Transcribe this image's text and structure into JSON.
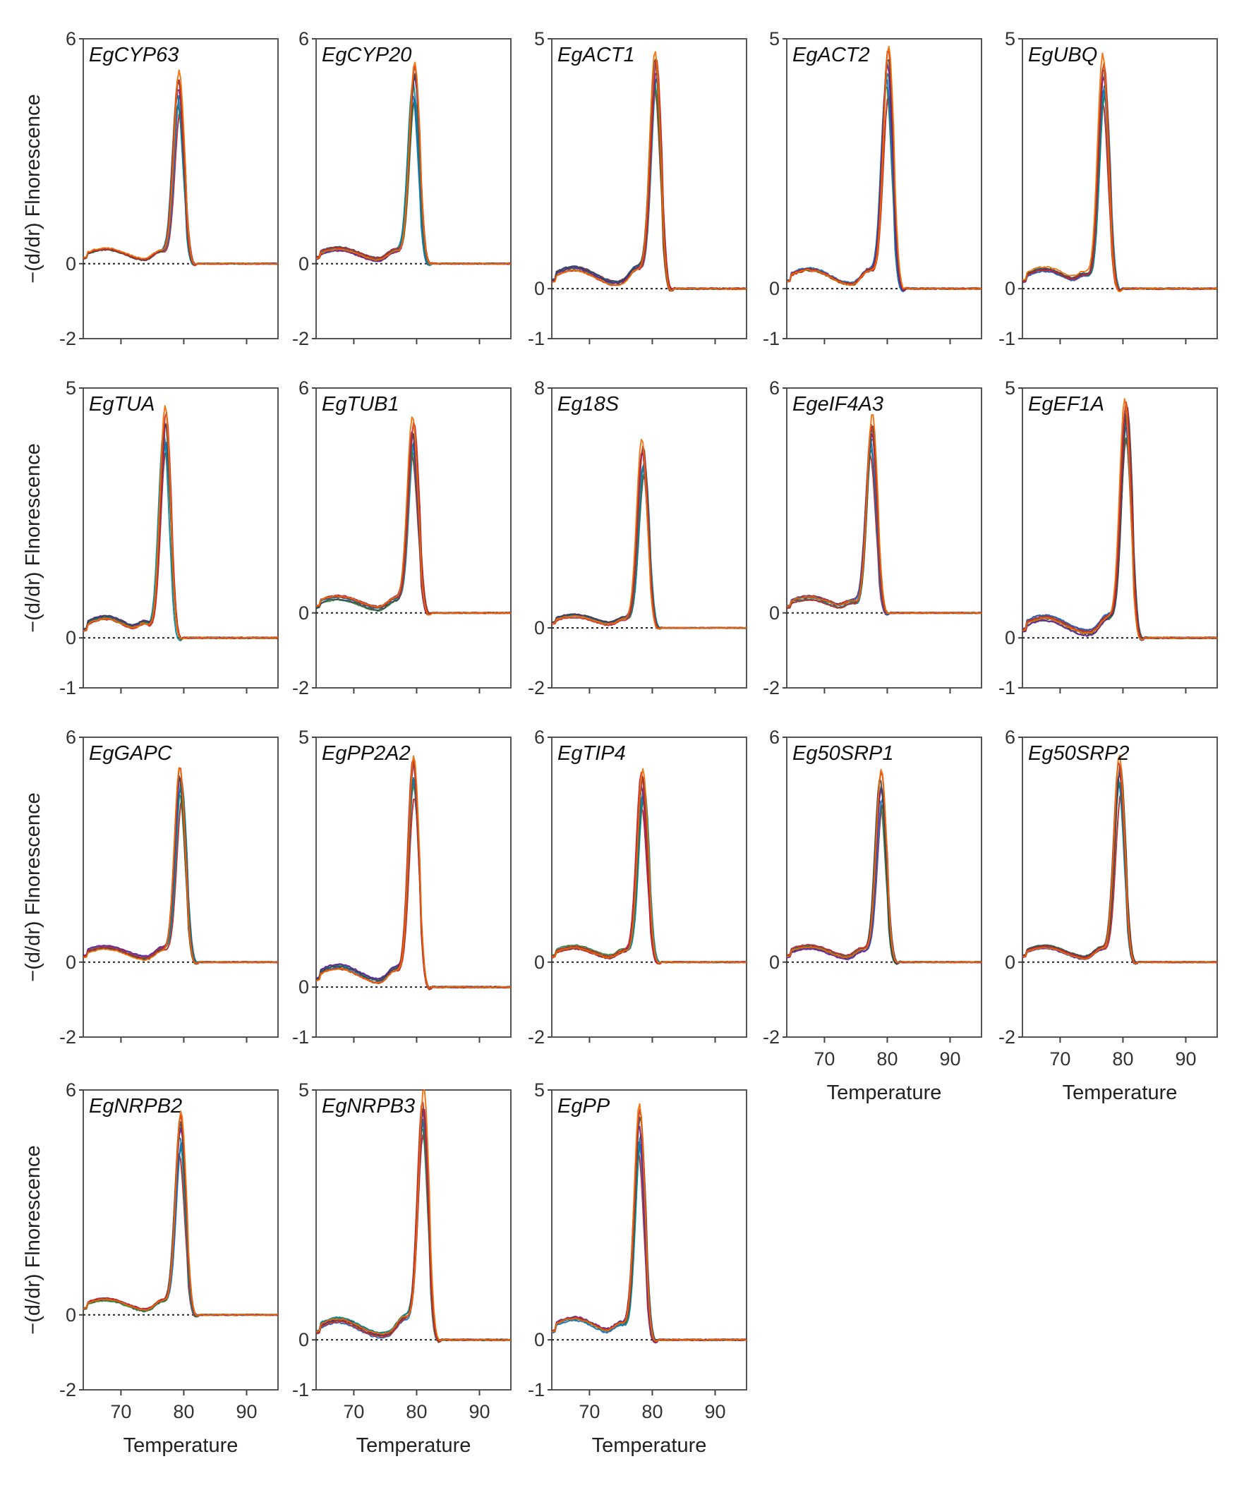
{
  "chart_data": {
    "type": "line",
    "title": "",
    "ylabel": "−(d/dr) Flnorescence",
    "xlabel": "Temperature",
    "xlim": [
      64,
      95
    ],
    "x_ticks": [
      70,
      80,
      90
    ],
    "series_colors": [
      "#b71c1c",
      "#2e7d32",
      "#1565c0",
      "#00838f",
      "#6a1b9a",
      "#37474f",
      "#c62828",
      "#ef6c00"
    ],
    "panels": [
      {
        "title": "EgCYP63",
        "ylim": [
          -2,
          6
        ],
        "peak_x": 79.2,
        "peak_y": 4.8,
        "x_labels": false,
        "ylabel": true
      },
      {
        "title": "EgCYP20",
        "ylim": [
          -2,
          6
        ],
        "peak_x": 79.5,
        "peak_y": 5.0,
        "x_labels": false,
        "ylabel": false
      },
      {
        "title": "EgACT1",
        "ylim": [
          -1,
          5
        ],
        "peak_x": 80.5,
        "peak_y": 4.4,
        "x_labels": false,
        "ylabel": false
      },
      {
        "title": "EgACT2",
        "ylim": [
          -1,
          5
        ],
        "peak_x": 80.0,
        "peak_y": 4.5,
        "x_labels": false,
        "ylabel": false
      },
      {
        "title": "EgUBQ",
        "ylim": [
          -1,
          5
        ],
        "peak_x": 77.0,
        "peak_y": 4.5,
        "x_labels": false,
        "ylabel": false
      },
      {
        "title": "EgTUA",
        "ylim": [
          -1,
          5
        ],
        "peak_x": 77.0,
        "peak_y": 4.4,
        "x_labels": false,
        "ylabel": true
      },
      {
        "title": "EgTUB1",
        "ylim": [
          -2,
          6
        ],
        "peak_x": 79.5,
        "peak_y": 4.8,
        "x_labels": false,
        "ylabel": false
      },
      {
        "title": "Eg18S",
        "ylim": [
          -2,
          8
        ],
        "peak_x": 78.5,
        "peak_y": 6.0,
        "x_labels": false,
        "ylabel": false
      },
      {
        "title": "EgeIF4A3",
        "ylim": [
          -2,
          6
        ],
        "peak_x": 77.5,
        "peak_y": 5.0,
        "x_labels": false,
        "ylabel": false
      },
      {
        "title": "EgEF1A",
        "ylim": [
          -1,
          5
        ],
        "peak_x": 80.5,
        "peak_y": 4.5,
        "x_labels": false,
        "ylabel": false
      },
      {
        "title": "EgGAPC",
        "ylim": [
          -2,
          6
        ],
        "peak_x": 79.5,
        "peak_y": 5.0,
        "x_labels": false,
        "ylabel": true
      },
      {
        "title": "EgPP2A2",
        "ylim": [
          -1,
          5
        ],
        "peak_x": 79.5,
        "peak_y": 4.4,
        "x_labels": false,
        "ylabel": false
      },
      {
        "title": "EgTIP4",
        "ylim": [
          -2,
          6
        ],
        "peak_x": 78.5,
        "peak_y": 4.9,
        "x_labels": false,
        "ylabel": false
      },
      {
        "title": "Eg50SRP1",
        "ylim": [
          -2,
          6
        ],
        "peak_x": 79.0,
        "peak_y": 4.8,
        "x_labels": true,
        "ylabel": false
      },
      {
        "title": "Eg50SRP2",
        "ylim": [
          -2,
          6
        ],
        "peak_x": 79.5,
        "peak_y": 5.2,
        "x_labels": true,
        "ylabel": false
      },
      {
        "title": "EgNRPB2",
        "ylim": [
          -2,
          6
        ],
        "peak_x": 79.5,
        "peak_y": 5.0,
        "x_labels": true,
        "ylabel": true
      },
      {
        "title": "EgNRPB3",
        "ylim": [
          -1,
          5
        ],
        "peak_x": 81.0,
        "peak_y": 4.6,
        "x_labels": true,
        "ylabel": false
      },
      {
        "title": "EgPP",
        "ylim": [
          -1,
          5
        ],
        "peak_x": 78.0,
        "peak_y": 4.4,
        "x_labels": true,
        "ylabel": false
      }
    ]
  }
}
